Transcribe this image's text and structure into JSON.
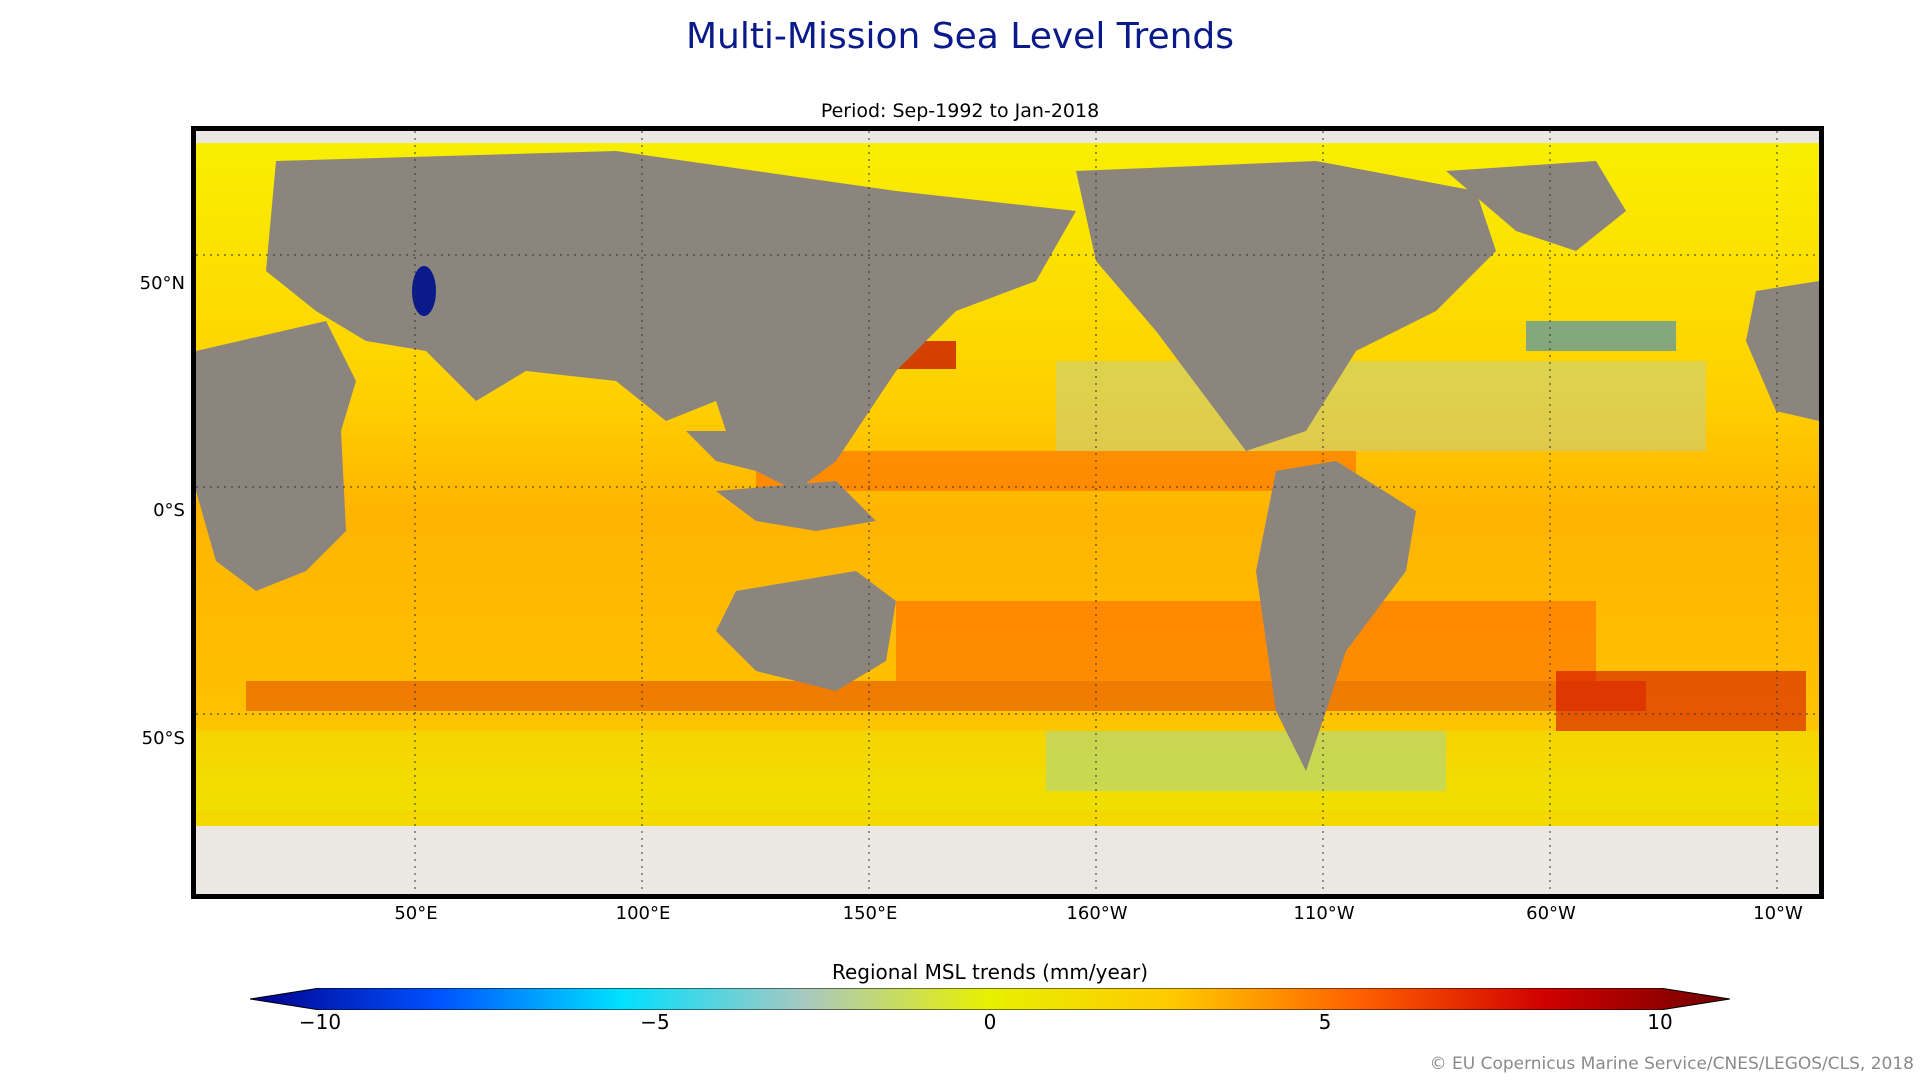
{
  "title": "Multi-Mission Sea Level Trends",
  "subtitle": "Period: Sep-1992 to Jan-2018",
  "map": {
    "lat_ticks": [
      "50°N",
      "0°S",
      "50°S"
    ],
    "lon_ticks": [
      "50°E",
      "100°E",
      "150°E",
      "160°W",
      "110°W",
      "60°W",
      "10°W"
    ]
  },
  "colorbar": {
    "label": "Regional MSL trends (mm/year)",
    "ticks": [
      "−10",
      "−5",
      "0",
      "5",
      "10"
    ],
    "min": -10,
    "max": 10,
    "colors": [
      "#00008b",
      "#0050ff",
      "#00e0ff",
      "#a8c8c0",
      "#e8f000",
      "#ffc800",
      "#ff6000",
      "#d00000",
      "#700000"
    ]
  },
  "credit": "© EU Copernicus Marine Service/CNES/LEGOS/CLS, 2018",
  "colors": {
    "title": "#0a1a8a",
    "land": "#8c857d",
    "ice": "#ebe8e4",
    "ocean_base": "#ffd200"
  }
}
